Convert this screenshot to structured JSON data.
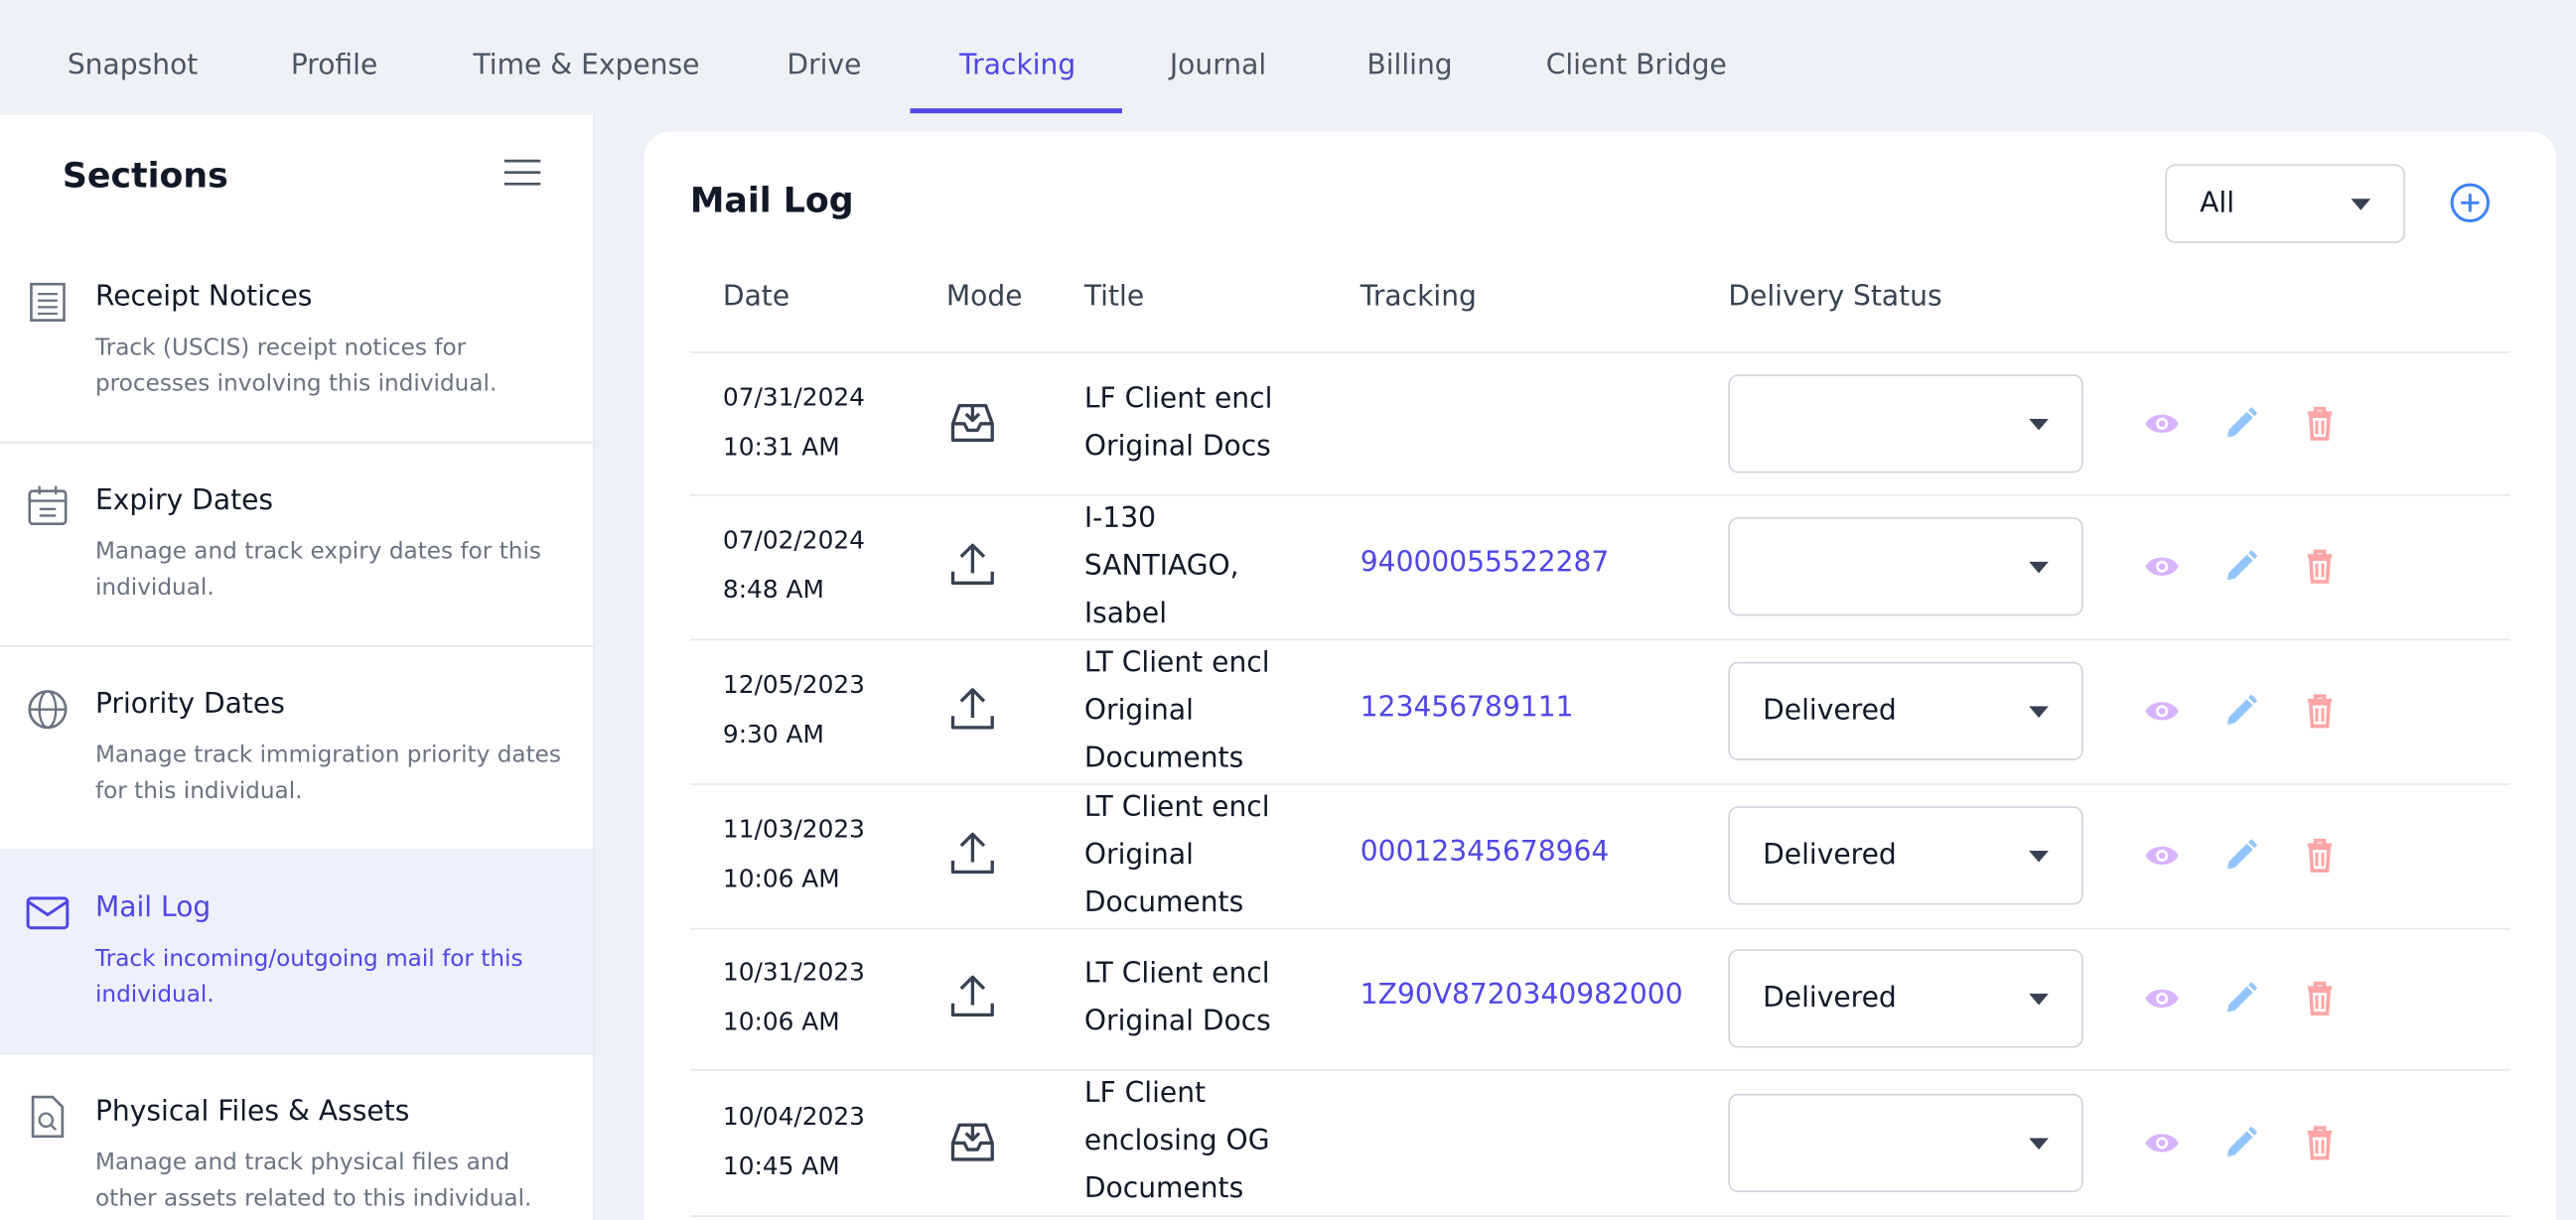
{
  "tabs": [
    "Snapshot",
    "Profile",
    "Time & Expense",
    "Drive",
    "Tracking",
    "Journal",
    "Billing",
    "Client Bridge"
  ],
  "sidebar": {
    "title": "Sections",
    "items": [
      {
        "title": "Receipt Notices",
        "description": "Track (USCIS) receipt notices for processes involving this individual."
      },
      {
        "title": "Expiry Dates",
        "description": "Manage and track expiry dates for this individual."
      },
      {
        "title": "Priority Dates",
        "description": "Manage track immigration priority dates for this individual."
      },
      {
        "title": "Mail Log",
        "description": "Track incoming/outgoing mail for this individual."
      },
      {
        "title": "Physical Files & Assets",
        "description": "Manage and track physical files and other assets related to this individual."
      }
    ]
  },
  "mail_log": {
    "title": "Mail Log",
    "filter": "All",
    "columns": [
      "Date",
      "Mode",
      "Title",
      "Tracking",
      "Delivery Status"
    ],
    "rows": [
      {
        "date": "07/31/2024",
        "time": "10:31 AM",
        "title": "LF Client encl Original Docs"
      },
      {
        "date": "07/02/2024",
        "time": "8:48 AM",
        "title": "I-130 SANTIAGO, Isabel",
        "tracking": "94000055522287"
      },
      {
        "date": "12/05/2023",
        "time": "9:30 AM",
        "title": "LT Client encl Original Documents",
        "tracking": "123456789111",
        "status": "Delivered"
      },
      {
        "date": "11/03/2023",
        "time": "10:06 AM",
        "title": "LT Client encl Original Documents",
        "tracking": "00012345678964",
        "status": "Delivered"
      },
      {
        "date": "10/31/2023",
        "time": "10:06 AM",
        "title": "LT Client encl Original Docs",
        "tracking": "1Z90V8720340982000",
        "status": "Delivered"
      },
      {
        "date": "10/04/2023",
        "time": "10:45 AM",
        "title": "LF Client enclosing OG Documents"
      }
    ]
  }
}
